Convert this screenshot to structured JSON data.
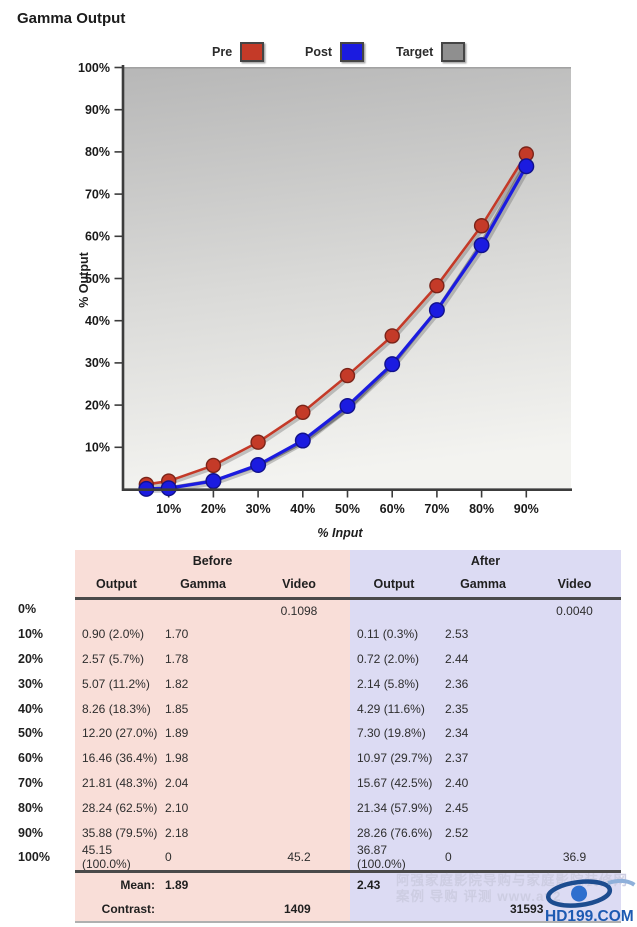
{
  "title": "Gamma Output",
  "legend": [
    {
      "label": "Pre",
      "color": "#c43a28"
    },
    {
      "label": "Post",
      "color": "#1b1be0"
    },
    {
      "label": "Target",
      "color": "#8f8f8f"
    }
  ],
  "chart_data": {
    "type": "line",
    "title": "Gamma Output",
    "xlabel": "% Input",
    "ylabel": "% Output",
    "xlim": [
      0,
      100
    ],
    "ylim": [
      0,
      100
    ],
    "grid": false,
    "legend_position": "top-center",
    "x_ticks": [
      "10%",
      "20%",
      "30%",
      "40%",
      "50%",
      "60%",
      "70%",
      "80%",
      "90%"
    ],
    "y_ticks": [
      "10%",
      "20%",
      "30%",
      "40%",
      "50%",
      "60%",
      "70%",
      "80%",
      "90%",
      "100%"
    ],
    "x": [
      5,
      10,
      20,
      30,
      40,
      50,
      60,
      70,
      80,
      90
    ],
    "series": [
      {
        "name": "Target",
        "color": "#8f8f8f",
        "dots": false,
        "values": [
          0.1,
          0.4,
          2.1,
          5.6,
          11.1,
          18.9,
          29.3,
          42.5,
          58.5,
          77.7
        ]
      },
      {
        "name": "Pre",
        "color": "#c43a28",
        "dots": true,
        "values": [
          1.2,
          2.0,
          5.7,
          11.2,
          18.3,
          27.0,
          36.4,
          48.3,
          62.5,
          79.5
        ]
      },
      {
        "name": "Post",
        "color": "#1b1be0",
        "dots": true,
        "values": [
          0.15,
          0.3,
          2.0,
          5.8,
          11.6,
          19.8,
          29.7,
          42.5,
          57.9,
          76.6
        ]
      }
    ]
  },
  "table": {
    "group_headers": [
      "Before",
      "After"
    ],
    "col_headers": [
      "Output",
      "Gamma",
      "Video"
    ],
    "section_colors": {
      "before": "#f9ded8",
      "after": "#dcdbf3"
    },
    "rows": [
      {
        "label": "0%",
        "before": {
          "output": "",
          "gamma": "",
          "video": "0.1098"
        },
        "after": {
          "output": "",
          "gamma": "",
          "video": "0.0040"
        }
      },
      {
        "label": "10%",
        "before": {
          "output": "0.90 (2.0%)",
          "gamma": "1.70",
          "video": ""
        },
        "after": {
          "output": "0.11 (0.3%)",
          "gamma": "2.53",
          "video": ""
        }
      },
      {
        "label": "20%",
        "before": {
          "output": "2.57 (5.7%)",
          "gamma": "1.78",
          "video": ""
        },
        "after": {
          "output": "0.72 (2.0%)",
          "gamma": "2.44",
          "video": ""
        }
      },
      {
        "label": "30%",
        "before": {
          "output": "5.07 (11.2%)",
          "gamma": "1.82",
          "video": ""
        },
        "after": {
          "output": "2.14 (5.8%)",
          "gamma": "2.36",
          "video": ""
        }
      },
      {
        "label": "40%",
        "before": {
          "output": "8.26 (18.3%)",
          "gamma": "1.85",
          "video": ""
        },
        "after": {
          "output": "4.29 (11.6%)",
          "gamma": "2.35",
          "video": ""
        }
      },
      {
        "label": "50%",
        "before": {
          "output": "12.20 (27.0%)",
          "gamma": "1.89",
          "video": ""
        },
        "after": {
          "output": "7.30 (19.8%)",
          "gamma": "2.34",
          "video": ""
        }
      },
      {
        "label": "60%",
        "before": {
          "output": "16.46 (36.4%)",
          "gamma": "1.98",
          "video": ""
        },
        "after": {
          "output": "10.97 (29.7%)",
          "gamma": "2.37",
          "video": ""
        }
      },
      {
        "label": "70%",
        "before": {
          "output": "21.81 (48.3%)",
          "gamma": "2.04",
          "video": ""
        },
        "after": {
          "output": "15.67 (42.5%)",
          "gamma": "2.40",
          "video": ""
        }
      },
      {
        "label": "80%",
        "before": {
          "output": "28.24 (62.5%)",
          "gamma": "2.10",
          "video": ""
        },
        "after": {
          "output": "21.34 (57.9%)",
          "gamma": "2.45",
          "video": ""
        }
      },
      {
        "label": "90%",
        "before": {
          "output": "35.88 (79.5%)",
          "gamma": "2.18",
          "video": ""
        },
        "after": {
          "output": "28.26 (76.6%)",
          "gamma": "2.52",
          "video": ""
        }
      },
      {
        "label": "100%",
        "before": {
          "output": "45.15 (100.0%)",
          "gamma": "0",
          "video": "45.2"
        },
        "after": {
          "output": "36.87 (100.0%)",
          "gamma": "0",
          "video": "36.9"
        }
      }
    ],
    "footer": {
      "mean_label": "Mean:",
      "before_mean": "1.89",
      "after_mean": "2.43",
      "contrast_label": "Contrast:",
      "before_contrast": "1409",
      "after_contrast": "31593"
    }
  },
  "watermark": {
    "line1": "阿强家庭影院导购与家庭影院装修网",
    "line2": "案例 导购 评测 www.av2",
    "logo_text": "HD199.COM"
  }
}
